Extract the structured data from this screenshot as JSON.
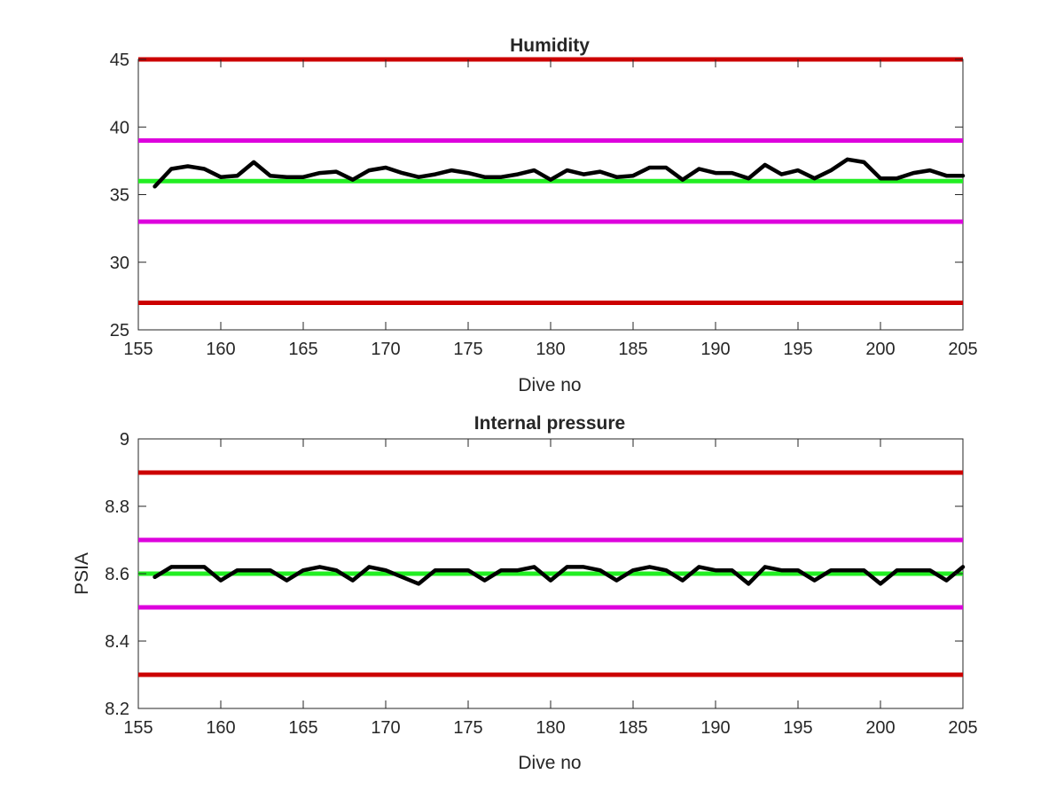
{
  "chart_data": [
    {
      "type": "line",
      "title": "Humidity",
      "xlabel": "Dive no",
      "ylabel": "",
      "xlim": [
        155,
        205
      ],
      "ylim": [
        25,
        45
      ],
      "x_ticks": [
        155,
        160,
        165,
        170,
        175,
        180,
        185,
        190,
        195,
        200,
        205
      ],
      "y_ticks": [
        25,
        30,
        35,
        40,
        45
      ],
      "grid": false,
      "box": true,
      "reference_lines": [
        {
          "y": 45,
          "color": "#cc0000"
        },
        {
          "y": 39,
          "color": "#dd00dd"
        },
        {
          "y": 36,
          "color": "#22ee22"
        },
        {
          "y": 33,
          "color": "#dd00dd"
        },
        {
          "y": 27,
          "color": "#cc0000"
        }
      ],
      "series": [
        {
          "color": "#000000",
          "x": [
            156,
            157,
            158,
            159,
            160,
            161,
            162,
            163,
            164,
            165,
            166,
            167,
            168,
            169,
            170,
            171,
            172,
            173,
            174,
            175,
            176,
            177,
            178,
            179,
            180,
            181,
            182,
            183,
            184,
            185,
            186,
            187,
            188,
            189,
            190,
            191,
            192,
            193,
            194,
            195,
            196,
            197,
            198,
            199,
            200,
            201,
            202,
            203,
            204,
            205
          ],
          "y": [
            35.6,
            36.9,
            37.1,
            36.9,
            36.3,
            36.4,
            37.4,
            36.4,
            36.3,
            36.3,
            36.6,
            36.7,
            36.1,
            36.8,
            37.0,
            36.6,
            36.3,
            36.5,
            36.8,
            36.6,
            36.3,
            36.3,
            36.5,
            36.8,
            36.1,
            36.8,
            36.5,
            36.7,
            36.3,
            36.4,
            37.0,
            37.0,
            36.1,
            36.9,
            36.6,
            36.6,
            36.2,
            37.2,
            36.5,
            36.8,
            36.2,
            36.8,
            37.6,
            37.4,
            36.2,
            36.2,
            36.6,
            36.8,
            36.4,
            36.4
          ]
        }
      ]
    },
    {
      "type": "line",
      "title": "Internal pressure",
      "xlabel": "Dive no",
      "ylabel": "PSIA",
      "xlim": [
        155,
        205
      ],
      "ylim": [
        8.2,
        9.0
      ],
      "x_ticks": [
        155,
        160,
        165,
        170,
        175,
        180,
        185,
        190,
        195,
        200,
        205
      ],
      "y_ticks": [
        8.2,
        8.4,
        8.6,
        8.8,
        9
      ],
      "grid": false,
      "box": true,
      "reference_lines": [
        {
          "y": 8.9,
          "color": "#cc0000"
        },
        {
          "y": 8.7,
          "color": "#dd00dd"
        },
        {
          "y": 8.6,
          "color": "#22ee22"
        },
        {
          "y": 8.5,
          "color": "#dd00dd"
        },
        {
          "y": 8.3,
          "color": "#cc0000"
        }
      ],
      "series": [
        {
          "color": "#000000",
          "x": [
            156,
            157,
            158,
            159,
            160,
            161,
            162,
            163,
            164,
            165,
            166,
            167,
            168,
            169,
            170,
            171,
            172,
            173,
            174,
            175,
            176,
            177,
            178,
            179,
            180,
            181,
            182,
            183,
            184,
            185,
            186,
            187,
            188,
            189,
            190,
            191,
            192,
            193,
            194,
            195,
            196,
            197,
            198,
            199,
            200,
            201,
            202,
            203,
            204,
            205
          ],
          "y": [
            8.59,
            8.62,
            8.62,
            8.62,
            8.58,
            8.61,
            8.61,
            8.61,
            8.58,
            8.61,
            8.62,
            8.61,
            8.58,
            8.62,
            8.61,
            8.59,
            8.57,
            8.61,
            8.61,
            8.61,
            8.58,
            8.61,
            8.61,
            8.62,
            8.58,
            8.62,
            8.62,
            8.61,
            8.58,
            8.61,
            8.62,
            8.61,
            8.58,
            8.62,
            8.61,
            8.61,
            8.57,
            8.62,
            8.61,
            8.61,
            8.58,
            8.61,
            8.61,
            8.61,
            8.57,
            8.61,
            8.61,
            8.61,
            8.58,
            8.62
          ]
        }
      ]
    }
  ]
}
